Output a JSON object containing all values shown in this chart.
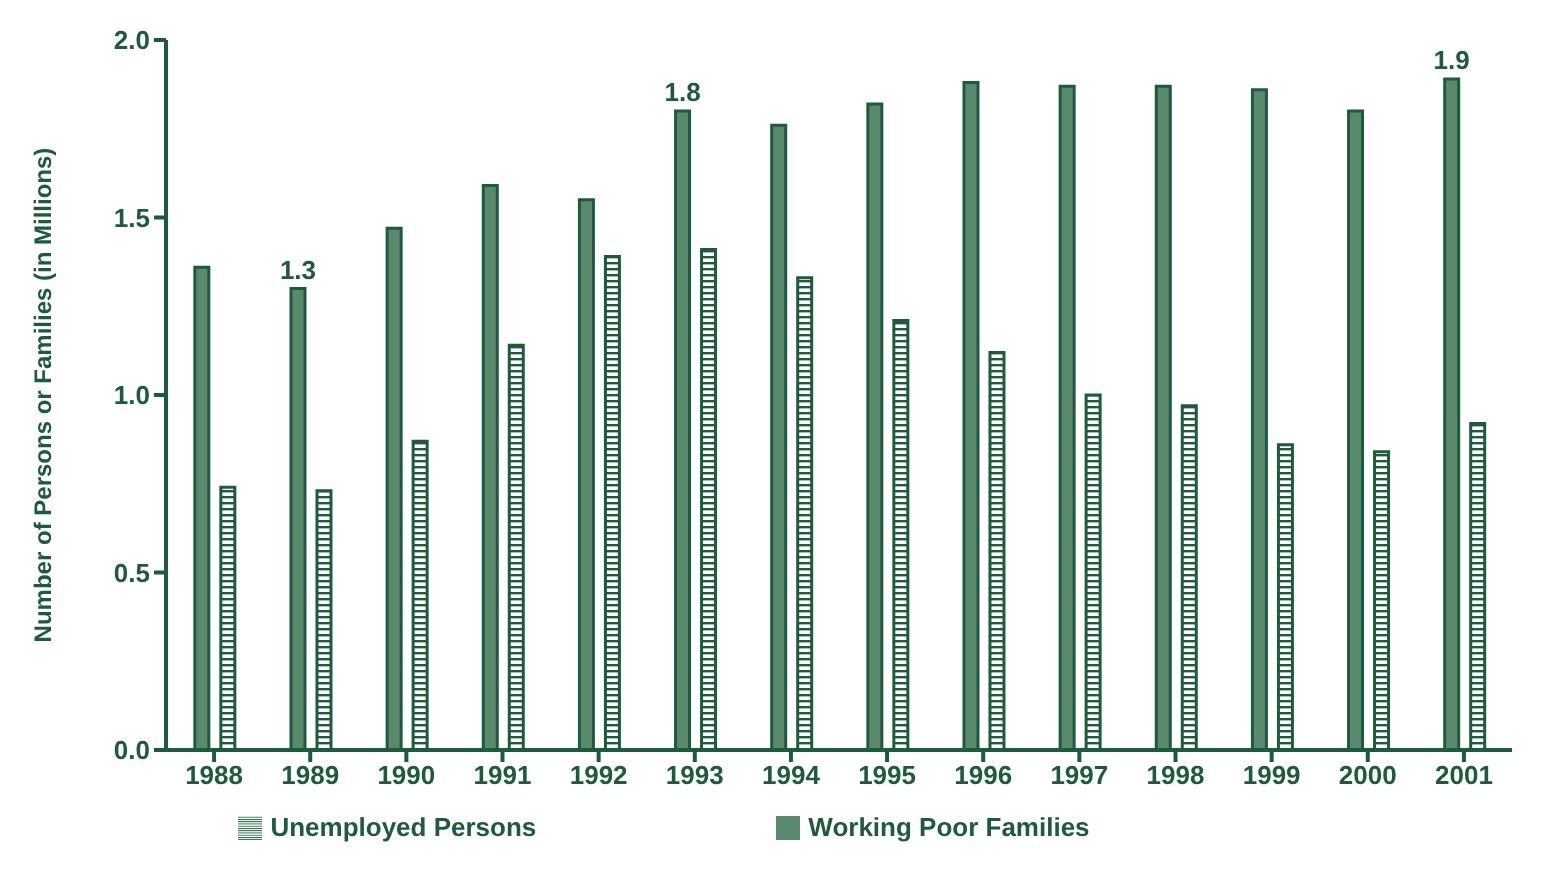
{
  "chart_data": {
    "type": "bar",
    "ylabel": "Number of Persons or Families (in Millions)",
    "categories": [
      "1988",
      "1989",
      "1990",
      "1991",
      "1992",
      "1993",
      "1994",
      "1995",
      "1996",
      "1997",
      "1998",
      "1999",
      "2000",
      "2001"
    ],
    "series": [
      {
        "name": "Working Poor Families",
        "color": "#5a8a6e",
        "values": [
          1.36,
          1.3,
          1.47,
          1.59,
          1.55,
          1.8,
          1.76,
          1.82,
          1.88,
          1.87,
          1.87,
          1.86,
          1.8,
          1.89
        ],
        "value_labels": [
          null,
          "1.3",
          null,
          null,
          null,
          "1.8",
          null,
          null,
          null,
          null,
          null,
          null,
          null,
          "1.9"
        ]
      },
      {
        "name": "Unemployed Persons",
        "color": "#1e5a3c",
        "values": [
          0.74,
          0.73,
          0.87,
          1.14,
          1.39,
          1.41,
          1.33,
          1.21,
          1.12,
          1.0,
          0.97,
          0.86,
          0.84,
          0.92
        ]
      }
    ],
    "ylim": [
      0,
      2
    ],
    "yticks": [
      {
        "value": 0,
        "label": "0.0"
      },
      {
        "value": 0.5,
        "label": "0.5"
      },
      {
        "value": 1,
        "label": "1.0"
      },
      {
        "value": 1.5,
        "label": "1.5"
      },
      {
        "value": 2,
        "label": "2.0"
      }
    ],
    "grid": false,
    "legend": "bottom"
  }
}
